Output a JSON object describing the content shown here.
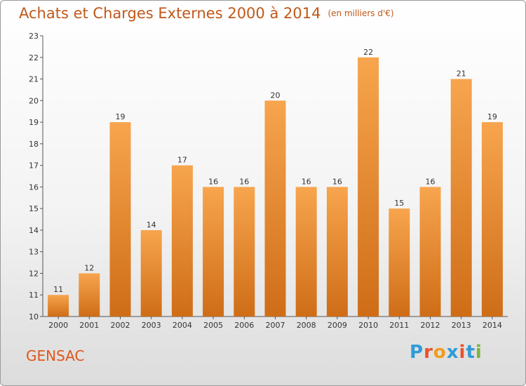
{
  "title": "Achats et Charges Externes 2000 à 2014",
  "unit_note": "(en milliers d'€)",
  "city": "GENSAC",
  "logo": "Proxiti",
  "colors": {
    "bar_light": "#f7a54e",
    "bar_dark": "#cf6d17",
    "title": "#c0581a",
    "logo_letters": [
      "#2f9bd6",
      "#e8522b",
      "#f29b1d",
      "#2f9bd6",
      "#e8522b",
      "#2f9bd6",
      "#7bb53b"
    ]
  },
  "chart_data": {
    "type": "bar",
    "title": "Achats et Charges Externes 2000 à 2014",
    "xlabel": "",
    "ylabel": "",
    "categories": [
      "2000",
      "2001",
      "2002",
      "2003",
      "2004",
      "2005",
      "2006",
      "2007",
      "2008",
      "2009",
      "2010",
      "2011",
      "2012",
      "2013",
      "2014"
    ],
    "values": [
      11,
      12,
      19,
      14,
      17,
      16,
      16,
      20,
      16,
      16,
      22,
      15,
      16,
      21,
      19
    ],
    "ylim": [
      10,
      23
    ],
    "yticks": [
      10,
      11,
      12,
      13,
      14,
      15,
      16,
      17,
      18,
      19,
      20,
      21,
      22,
      23
    ],
    "grid": false,
    "data_labels": true
  }
}
